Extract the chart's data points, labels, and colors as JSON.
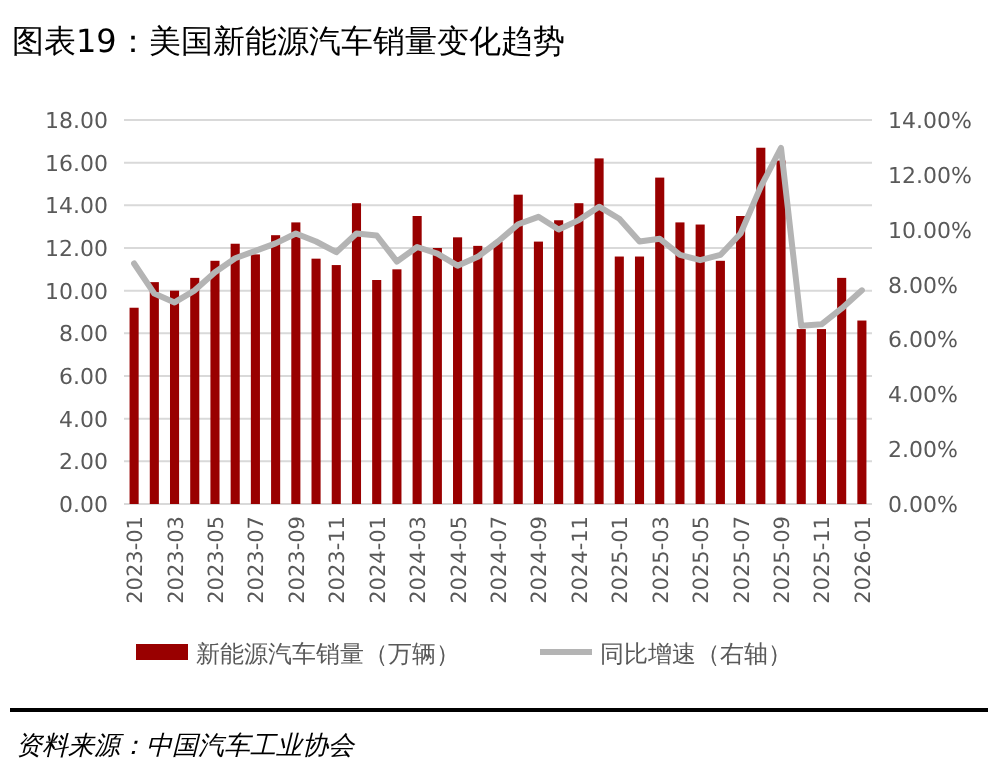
{
  "chart_data": {
    "type": "bar",
    "title": "图表19：美国新能源汽车销量变化趋势",
    "categories": [
      "2023-01",
      null,
      "2023-03",
      null,
      "2023-05",
      null,
      "2023-07",
      null,
      "2023-09",
      null,
      "2023-11",
      null,
      "2024-01",
      null,
      "2024-03",
      null,
      "2024-05",
      null,
      "2024-07",
      null,
      "2024-09",
      null,
      "2024-11",
      null,
      "2025-01",
      null,
      "2025-03",
      null,
      "2025-05",
      null,
      "2025-07",
      null,
      "2025-09",
      null,
      "2025-11",
      null,
      "2026-01"
    ],
    "series": [
      {
        "name": "新能源汽车销量（万辆）",
        "color": "#990000",
        "values": [
          9.2,
          10.4,
          10.0,
          10.6,
          11.4,
          12.2,
          11.7,
          12.6,
          13.2,
          11.5,
          11.2,
          14.1,
          10.5,
          11.0,
          13.5,
          12.0,
          12.5,
          12.1,
          12.3,
          14.5,
          12.3,
          13.3,
          14.1,
          16.2,
          11.6,
          11.6,
          15.3,
          13.2,
          13.1,
          11.4,
          13.5,
          16.7,
          16.1,
          8.2,
          8.2,
          10.6,
          8.6
        ]
      },
      {
        "name": "同比增速（右轴）",
        "type": "line",
        "axis": "y2",
        "color": "#b4b4b4",
        "values": [
          8.77,
          7.67,
          7.35,
          7.79,
          8.45,
          8.96,
          9.23,
          9.5,
          9.86,
          9.57,
          9.18,
          9.86,
          9.79,
          8.84,
          9.37,
          9.13,
          8.69,
          9.01,
          9.57,
          10.2,
          10.47,
          10.01,
          10.35,
          10.84,
          10.4,
          9.57,
          9.67,
          9.08,
          8.89,
          9.08,
          9.86,
          11.57,
          12.98,
          6.5,
          6.55,
          7.13,
          7.79
        ]
      }
    ],
    "ylim": [
      0,
      18
    ],
    "yticks": [
      {
        "value": 0,
        "label": "0.00"
      },
      {
        "value": 2,
        "label": "2.00"
      },
      {
        "value": 4,
        "label": "4.00"
      },
      {
        "value": 6,
        "label": "6.00"
      },
      {
        "value": 8,
        "label": "8.00"
      },
      {
        "value": 10,
        "label": "10.00"
      },
      {
        "value": 12,
        "label": "12.00"
      },
      {
        "value": 14,
        "label": "14.00"
      },
      {
        "value": 16,
        "label": "16.00"
      },
      {
        "value": 18,
        "label": "18.00"
      }
    ],
    "y2lim": [
      0,
      14
    ],
    "y2ticks": [
      {
        "value": 0,
        "label": "0.00%"
      },
      {
        "value": 2,
        "label": "2.00%"
      },
      {
        "value": 4,
        "label": "4.00%"
      },
      {
        "value": 6,
        "label": "6.00%"
      },
      {
        "value": 8,
        "label": "8.00%"
      },
      {
        "value": 10,
        "label": "10.00%"
      },
      {
        "value": 12,
        "label": "12.00%"
      },
      {
        "value": 14,
        "label": "14.00%"
      }
    ],
    "grid": "y",
    "legend": "bottom",
    "annotations": [
      "资料来源：中国汽车工业协会"
    ]
  }
}
